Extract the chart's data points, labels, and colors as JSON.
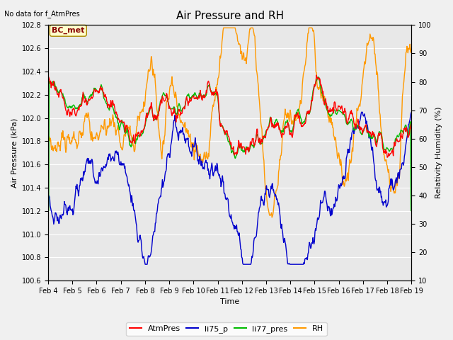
{
  "title": "Air Pressure and RH",
  "subtitle": "No data for f_AtmPres",
  "xlabel": "Time",
  "ylabel_left": "Air Pressure (kPa)",
  "ylabel_right": "Relativity Humidity (%)",
  "ylim_left": [
    100.6,
    102.8
  ],
  "ylim_right": [
    10,
    100
  ],
  "yticks_left": [
    100.6,
    100.8,
    101.0,
    101.2,
    101.4,
    101.6,
    101.8,
    102.0,
    102.2,
    102.4,
    102.6,
    102.8
  ],
  "yticks_right": [
    10,
    20,
    30,
    40,
    50,
    60,
    70,
    80,
    90,
    100
  ],
  "xtick_labels": [
    "Feb 4",
    "Feb 5",
    "Feb 6",
    "Feb 7",
    "Feb 8",
    "Feb 9",
    "Feb 10",
    "Feb 11",
    "Feb 12",
    "Feb 13",
    "Feb 14",
    "Feb 15",
    "Feb 16",
    "Feb 17",
    "Feb 18",
    "Feb 19"
  ],
  "legend_labels": [
    "AtmPres",
    "li75_p",
    "li77_pres",
    "RH"
  ],
  "legend_colors": [
    "#ff0000",
    "#0000cc",
    "#00bb00",
    "#ff9900"
  ],
  "box_label": "BC_met",
  "plot_bg_color": "#e8e8e8",
  "fig_bg_color": "#f0f0f0",
  "grid_color": "#ffffff",
  "line_width": 1.0
}
